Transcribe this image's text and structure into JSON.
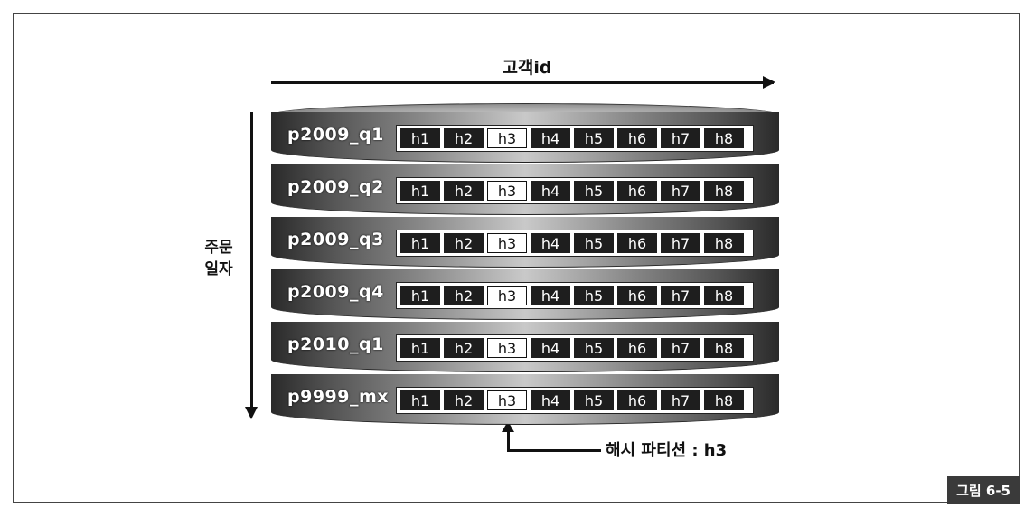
{
  "axes": {
    "horizontal_label": "고객id",
    "vertical_label_line1": "주문",
    "vertical_label_line2": "일자"
  },
  "partitions": [
    {
      "name": "p2009_q1",
      "cells": [
        "h1",
        "h2",
        "h3",
        "h4",
        "h5",
        "h6",
        "h7",
        "h8"
      ]
    },
    {
      "name": "p2009_q2",
      "cells": [
        "h1",
        "h2",
        "h3",
        "h4",
        "h5",
        "h6",
        "h7",
        "h8"
      ]
    },
    {
      "name": "p2009_q3",
      "cells": [
        "h1",
        "h2",
        "h3",
        "h4",
        "h5",
        "h6",
        "h7",
        "h8"
      ]
    },
    {
      "name": "p2009_q4",
      "cells": [
        "h1",
        "h2",
        "h3",
        "h4",
        "h5",
        "h6",
        "h7",
        "h8"
      ]
    },
    {
      "name": "p2010_q1",
      "cells": [
        "h1",
        "h2",
        "h3",
        "h4",
        "h5",
        "h6",
        "h7",
        "h8"
      ]
    },
    {
      "name": "p9999_mx",
      "cells": [
        "h1",
        "h2",
        "h3",
        "h4",
        "h5",
        "h6",
        "h7",
        "h8"
      ]
    }
  ],
  "highlight_cell": "h3",
  "pointer_text": "해시 파티션 : h3",
  "figure_tag": "그림 6-5",
  "colors": {
    "cell_dark": "#1e1e1e",
    "cell_highlight": "#ffffff"
  }
}
